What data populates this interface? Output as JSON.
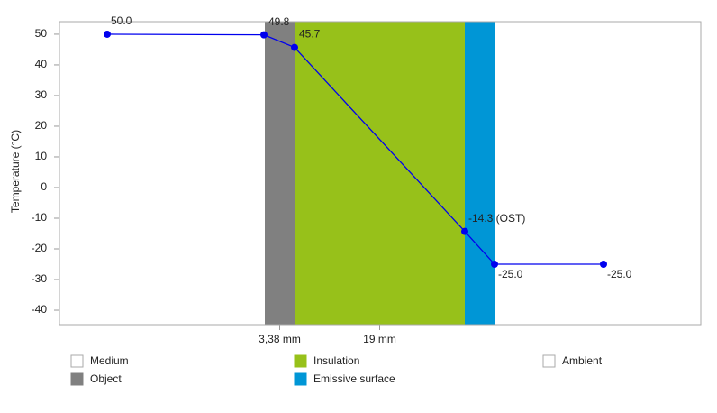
{
  "chart_data": {
    "type": "line",
    "y_label": "Temperature (°C)",
    "ylim": [
      -44.7,
      54.1
    ],
    "yticks": [
      -40,
      -30,
      -20,
      -10,
      0,
      10,
      20,
      30,
      40,
      50
    ],
    "series": [
      {
        "color": "#0000ee",
        "values": [
          50.0,
          49.8,
          45.7,
          -14.3,
          -25.0,
          -25.0
        ],
        "value_labels": [
          "50.0",
          "49.8",
          "45.7",
          "-14.3 (OST)",
          "-25.0",
          "-25.0"
        ]
      }
    ],
    "layers": [
      {
        "name": "Object",
        "color": "#808080",
        "label": "3,38 mm"
      },
      {
        "name": "Insulation",
        "color": "#97c11a",
        "label": "19 mm"
      },
      {
        "name": "Emissive surface",
        "color": "#0096d6"
      }
    ],
    "legend": [
      {
        "name": "Medium",
        "color": "#ffffff"
      },
      {
        "name": "Object",
        "color": "#808080"
      },
      {
        "name": "Insulation",
        "color": "#97c11a"
      },
      {
        "name": "Emissive surface",
        "color": "#0096d6"
      },
      {
        "name": "Ambient",
        "color": "#ffffff"
      }
    ]
  }
}
